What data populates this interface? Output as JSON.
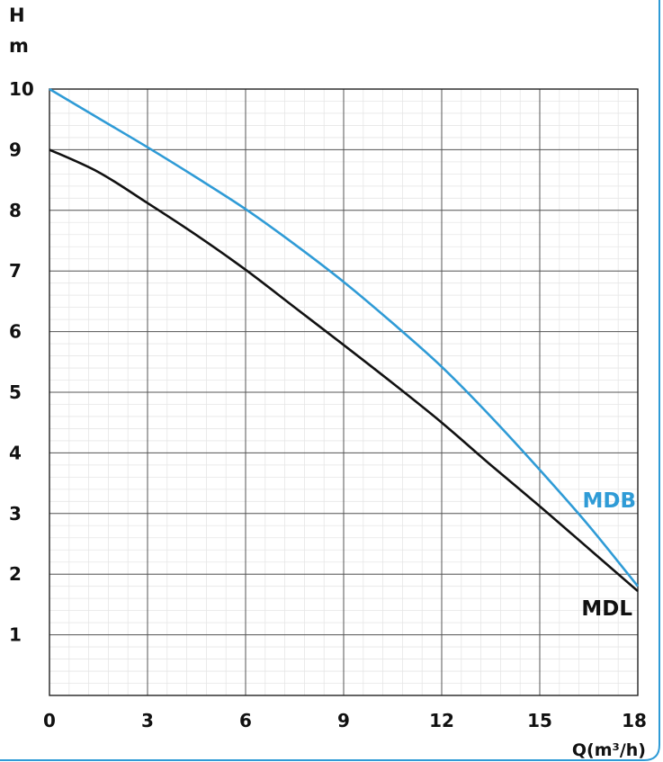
{
  "chart_data": {
    "type": "line",
    "ylabel_line1": "H",
    "ylabel_line2": "m",
    "xlabel": "Q(m³/h)",
    "xlim": [
      0,
      18
    ],
    "ylim": [
      0,
      10
    ],
    "x_ticks": [
      0,
      3,
      6,
      9,
      12,
      15,
      18
    ],
    "y_ticks": [
      1,
      2,
      3,
      4,
      5,
      6,
      7,
      8,
      9,
      10
    ],
    "grid": true,
    "series": [
      {
        "name": "MDB",
        "color": "#2f9bd6",
        "x": [
          0,
          1.5,
          3,
          4.5,
          6,
          7.5,
          9,
          10.5,
          12,
          13.5,
          15,
          16.5,
          18
        ],
        "y": [
          10,
          9.52,
          9.04,
          8.54,
          8.02,
          7.44,
          6.82,
          6.14,
          5.42,
          4.6,
          3.72,
          2.8,
          1.8
        ]
      },
      {
        "name": "MDL",
        "color": "#111111",
        "x": [
          0,
          1.5,
          3,
          4.5,
          6,
          7.5,
          9,
          10.5,
          12,
          13.5,
          15,
          16.5,
          18
        ],
        "y": [
          9,
          8.63,
          8.12,
          7.59,
          7.02,
          6.4,
          5.78,
          5.15,
          4.5,
          3.8,
          3.12,
          2.42,
          1.72
        ]
      }
    ]
  }
}
